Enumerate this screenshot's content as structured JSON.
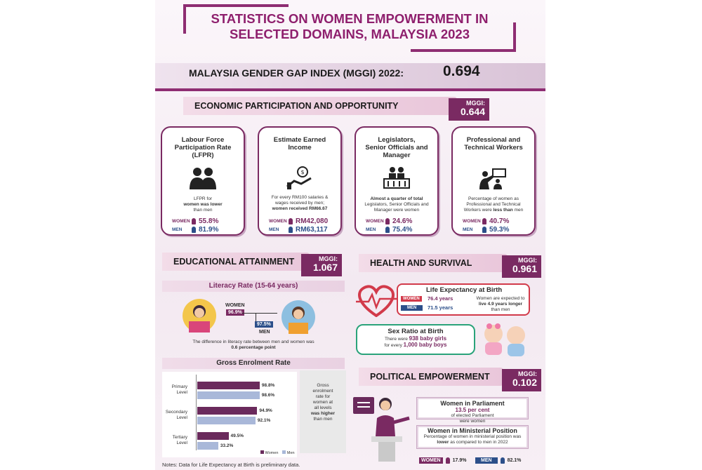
{
  "title": {
    "line1": "STATISTICS ON WOMEN EMPOWERMENT IN",
    "line2": "SELECTED DOMAINS, MALAYSIA 2023"
  },
  "mggi": {
    "label": "MALAYSIA GENDER GAP INDEX (MGGI) 2022:",
    "value": "0.694"
  },
  "mggi_key": "MGGI:",
  "economic": {
    "title": "ECONOMIC PARTICIPATION AND OPPORTUNITY",
    "mggi": "0.644",
    "cards": [
      {
        "title_l1": "Labour Force",
        "title_l2": "Participation Rate",
        "title_l3": "(LFPR)",
        "body_l1": "LFPR for",
        "body_b": "women was lower",
        "body_l3": "than men",
        "women": "55.8%",
        "men": "81.9%",
        "icon": "people-icon"
      },
      {
        "title_l1": "Estimate Earned",
        "title_l2": "Income",
        "title_l3": "",
        "body_l1": "For every RM100 salaries &",
        "body_l2": "wages received by men;",
        "body_b": "women received RM66.67",
        "women": "RM42,080",
        "men": "RM63,117",
        "icon": "money-icon"
      },
      {
        "title_l1": "Legislators,",
        "title_l2": "Senior Officials and",
        "title_l3": "Manager",
        "body_b": "Almost a quarter of total",
        "body_l2": "Legislators, Senior Officials and",
        "body_l3": "Manager were women",
        "women": "24.6%",
        "men": "75.4%",
        "icon": "podium-icon"
      },
      {
        "title_l1": "Professional and",
        "title_l2": "Technical Workers",
        "title_l3": "",
        "body_l1": "Percentage of women as",
        "body_l2": "Professional and Technical",
        "body_l3": "Workers were",
        "body_b": "less than",
        "body_l4": "men",
        "women": "40.7%",
        "men": "59.3%",
        "icon": "presentation-icon"
      }
    ],
    "women_label": "WOMEN",
    "men_label": "MEN"
  },
  "education": {
    "title": "EDUCATIONAL ATTAINMENT",
    "mggi": "1.067",
    "literacy_title": "Literacy Rate (15-64 years)",
    "women_label": "WOMEN",
    "men_label": "MEN",
    "women_rate": "96.9%",
    "men_rate": "97.5%",
    "literacy_note_l1": "The difference in literacy rate between men and women was",
    "literacy_note_b": "0.6 percentage point",
    "enrol_title": "Gross Enrolment Rate",
    "levels": [
      {
        "name_l1": "Primary",
        "name_l2": "Level",
        "women": 98.8,
        "men": 98.6,
        "women_txt": "98.8%",
        "men_txt": "98.6%"
      },
      {
        "name_l1": "Secondary",
        "name_l2": "Level",
        "women": 94.9,
        "men": 92.1,
        "women_txt": "94.9%",
        "men_txt": "92.1%"
      },
      {
        "name_l1": "Tertiary",
        "name_l2": "Level",
        "women": 49.5,
        "men": 33.2,
        "women_txt": "49.5%",
        "men_txt": "33.2%"
      }
    ],
    "legend_women": "Women",
    "legend_men": "Men",
    "side_l1": "Gross",
    "side_l2": "enrolment",
    "side_l3": "rate for",
    "side_l4": "women at",
    "side_l5": "all levels",
    "side_b1": "was higher",
    "side_l6": "than men"
  },
  "health": {
    "title": "HEALTH AND SURVIVAL",
    "mggi": "0.961",
    "life_title": "Life Expectancy at Birth",
    "women_label": "WOMEN",
    "men_label": "MEN",
    "women_years": "76.4 years",
    "men_years": "71.5 years",
    "life_note_l1": "Women are expected to",
    "life_note_b": "live 4.9 years longer",
    "life_note_l3": "than men",
    "sex_title": "Sex Ratio at Birth",
    "sex_l1": "There were",
    "sex_b1": "938 baby girls",
    "sex_l2": "for every",
    "sex_b2": "1,000 baby boys"
  },
  "political": {
    "title": "POLITICAL EMPOWERMENT",
    "mggi": "0.102",
    "parl_title": "Women in Parliament",
    "parl_b": "13.5 per cent",
    "parl_l1": "of elected Parliament",
    "parl_l2": "were women",
    "min_title": "Women in Ministerial Position",
    "min_l1": "Percentage of women in ministerial position was",
    "min_b": "lower",
    "min_l2": "as compared to men in 2022",
    "women_label": "WOMEN",
    "men_label": "MEN",
    "women": "17.9%",
    "men": "82.1%"
  },
  "note": "Notes: Data for Life Expectancy at Birth is preliminary data.",
  "colors": {
    "primary": "#7a2a62",
    "title": "#8e1f6d",
    "men": "#2c4f8a",
    "health_red": "#d23a4a",
    "health_green": "#2aa37a"
  }
}
